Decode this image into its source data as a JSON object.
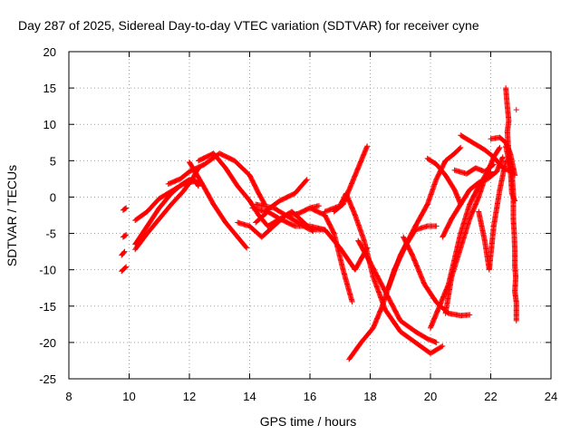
{
  "chart_data": {
    "type": "scatter",
    "title": "Day 287 of 2025, Sidereal Day-to-day VTEC variation (SDTVAR) for receiver cyne",
    "xlabel": "GPS time / hours",
    "ylabel": "SDTVAR / TECUs",
    "xlim": [
      8,
      24
    ],
    "ylim": [
      -25,
      20
    ],
    "xticks": [
      8,
      10,
      12,
      14,
      16,
      18,
      20,
      22,
      24
    ],
    "yticks": [
      -25,
      -20,
      -15,
      -10,
      -5,
      0,
      5,
      10,
      15,
      20
    ],
    "grid": true,
    "marker": "+",
    "color": "#ff0000",
    "series": [
      {
        "name": "s1",
        "points": [
          [
            9.8,
            -1.8
          ],
          [
            9.9,
            -1.5
          ]
        ]
      },
      {
        "name": "s2",
        "points": [
          [
            9.8,
            -5.5
          ],
          [
            9.9,
            -5.2
          ]
        ]
      },
      {
        "name": "s3",
        "points": [
          [
            9.75,
            -8
          ],
          [
            9.85,
            -7.5
          ]
        ]
      },
      {
        "name": "s4",
        "points": [
          [
            9.75,
            -10.2
          ],
          [
            9.9,
            -9.6
          ]
        ]
      },
      {
        "name": "s5",
        "points": [
          [
            10.2,
            -3.2
          ],
          [
            10.6,
            -2
          ],
          [
            11,
            -0.2
          ],
          [
            11.4,
            0.8
          ],
          [
            11.8,
            1.8
          ],
          [
            12.2,
            2.2
          ],
          [
            12.3,
            1.5
          ]
        ]
      },
      {
        "name": "s6",
        "points": [
          [
            10.2,
            -7.2
          ],
          [
            10.6,
            -5
          ],
          [
            11,
            -3
          ],
          [
            11.4,
            -1
          ],
          [
            11.8,
            0.8
          ],
          [
            12.1,
            2.5
          ],
          [
            12.3,
            4
          ]
        ]
      },
      {
        "name": "s7",
        "points": [
          [
            10.2,
            -6.5
          ],
          [
            10.6,
            -4
          ],
          [
            11,
            -1.5
          ],
          [
            11.4,
            0.5
          ],
          [
            11.7,
            1.6
          ],
          [
            12,
            2.4
          ],
          [
            12.3,
            2
          ]
        ]
      },
      {
        "name": "s8",
        "points": [
          [
            11.3,
            1.8
          ],
          [
            11.7,
            2.5
          ],
          [
            12,
            3.5
          ],
          [
            12.5,
            4.5
          ],
          [
            13,
            6
          ],
          [
            13.5,
            5
          ],
          [
            14,
            3
          ],
          [
            14.3,
            0.5
          ],
          [
            14.5,
            -1
          ]
        ]
      },
      {
        "name": "s9",
        "points": [
          [
            12.3,
            5
          ],
          [
            12.8,
            6
          ],
          [
            13.2,
            4
          ],
          [
            13.6,
            1.5
          ],
          [
            14,
            -0.5
          ],
          [
            14.3,
            -2.5
          ],
          [
            14.6,
            -4
          ],
          [
            15,
            -3
          ],
          [
            15.4,
            -2
          ],
          [
            15.8,
            -3.5
          ],
          [
            16.1,
            -4.7
          ]
        ]
      },
      {
        "name": "s10",
        "points": [
          [
            12.0,
            4.8
          ],
          [
            12.4,
            2
          ],
          [
            12.8,
            -1
          ],
          [
            13.2,
            -3.5
          ],
          [
            13.6,
            -5.5
          ],
          [
            13.9,
            -7
          ]
        ]
      },
      {
        "name": "s11",
        "points": [
          [
            13.6,
            -3.5
          ],
          [
            14,
            -4
          ],
          [
            14.4,
            -5.5
          ],
          [
            14.8,
            -4
          ],
          [
            15.2,
            -2.5
          ],
          [
            15.6,
            -2.3
          ],
          [
            16,
            -1.5
          ],
          [
            16.3,
            -1.2
          ]
        ]
      },
      {
        "name": "s12",
        "points": [
          [
            14.1,
            -1.5
          ],
          [
            14.5,
            -2
          ],
          [
            15,
            -0.5
          ],
          [
            15.5,
            0.5
          ],
          [
            15.9,
            2.4
          ]
        ]
      },
      {
        "name": "s13",
        "points": [
          [
            14.2,
            -3.5
          ],
          [
            14.6,
            -2
          ],
          [
            15,
            -3
          ],
          [
            15.5,
            -4
          ],
          [
            16,
            -4
          ],
          [
            16.5,
            -4.5
          ]
        ]
      },
      {
        "name": "s14",
        "points": [
          [
            14.2,
            -1
          ],
          [
            14.8,
            -1.5
          ],
          [
            15.4,
            -3
          ],
          [
            16,
            -4.5
          ],
          [
            16.5,
            -4.5
          ],
          [
            17,
            -7
          ],
          [
            17.5,
            -10
          ],
          [
            17.9,
            -7
          ]
        ]
      },
      {
        "name": "s15",
        "points": [
          [
            16,
            -1.5
          ],
          [
            16.5,
            -2.5
          ],
          [
            16.8,
            -5
          ],
          [
            17.1,
            -10
          ],
          [
            17.4,
            -14.4
          ]
        ]
      },
      {
        "name": "s16",
        "points": [
          [
            16.5,
            -2
          ],
          [
            17,
            -1.2
          ],
          [
            17.2,
            0.5
          ],
          [
            17.5,
            -2.5
          ],
          [
            17.8,
            -6
          ],
          [
            18.1,
            -11
          ],
          [
            18.5,
            -15.5
          ],
          [
            19,
            -18.5
          ],
          [
            19.5,
            -20
          ],
          [
            20,
            -21.5
          ],
          [
            20.4,
            -20.5
          ]
        ]
      },
      {
        "name": "s17",
        "points": [
          [
            16.8,
            -2
          ],
          [
            17.1,
            -1
          ],
          [
            17.4,
            2
          ],
          [
            17.7,
            5
          ],
          [
            17.9,
            7
          ]
        ]
      },
      {
        "name": "s18",
        "points": [
          [
            17.3,
            -22.3
          ],
          [
            17.7,
            -20
          ],
          [
            18.1,
            -18
          ],
          [
            18.4,
            -15
          ],
          [
            18.8,
            -10
          ],
          [
            19.2,
            -6.5
          ],
          [
            19.5,
            -4.5
          ],
          [
            19.9,
            -4
          ],
          [
            20.2,
            -4
          ]
        ]
      },
      {
        "name": "s19",
        "points": [
          [
            17.6,
            -6
          ],
          [
            18,
            -9
          ],
          [
            18.5,
            -13
          ],
          [
            19,
            -17
          ],
          [
            19.5,
            -18.5
          ],
          [
            19.9,
            -19.5
          ],
          [
            20.2,
            -20
          ]
        ]
      },
      {
        "name": "s20",
        "points": [
          [
            18.6,
            -12.5
          ],
          [
            19,
            -8
          ],
          [
            19.5,
            -4
          ],
          [
            19.9,
            -1
          ],
          [
            20.2,
            2.5
          ],
          [
            20.5,
            5
          ],
          [
            20.8,
            6
          ],
          [
            21,
            6.8
          ]
        ]
      },
      {
        "name": "s21",
        "points": [
          [
            19.1,
            -5.5
          ],
          [
            19.4,
            -8
          ],
          [
            19.8,
            -12
          ],
          [
            20.2,
            -14.5
          ],
          [
            20.6,
            -16
          ],
          [
            21,
            -16.3
          ],
          [
            21.3,
            -16.2
          ]
        ]
      },
      {
        "name": "s22",
        "points": [
          [
            19.9,
            5.3
          ],
          [
            20.2,
            4.5
          ],
          [
            20.5,
            3
          ],
          [
            20.8,
            1
          ],
          [
            21,
            -1
          ]
        ]
      },
      {
        "name": "s23",
        "points": [
          [
            20,
            -18
          ],
          [
            20.3,
            -15
          ],
          [
            20.6,
            -12
          ],
          [
            21,
            -5
          ],
          [
            21.3,
            -1
          ],
          [
            21.6,
            1.5
          ],
          [
            21.9,
            3.5
          ],
          [
            22.1,
            5.5
          ],
          [
            22.3,
            6.8
          ]
        ]
      },
      {
        "name": "s24",
        "points": [
          [
            20.4,
            -5.5
          ],
          [
            20.7,
            -3
          ],
          [
            21,
            -1
          ],
          [
            21.3,
            1
          ],
          [
            21.6,
            2
          ],
          [
            21.9,
            2.5
          ],
          [
            22.2,
            3.5
          ],
          [
            22.4,
            5.5
          ]
        ]
      },
      {
        "name": "s25",
        "points": [
          [
            20.5,
            -16
          ],
          [
            20.7,
            -11
          ],
          [
            21,
            -7
          ],
          [
            21.3,
            -3
          ],
          [
            21.6,
            0
          ],
          [
            21.8,
            2.5
          ],
          [
            22,
            3.5
          ]
        ]
      },
      {
        "name": "s26",
        "points": [
          [
            20.8,
            3.7
          ],
          [
            21.2,
            3.2
          ],
          [
            21.5,
            4
          ],
          [
            21.8,
            3.5
          ],
          [
            22.1,
            4.5
          ]
        ]
      },
      {
        "name": "s27",
        "points": [
          [
            21,
            8.5
          ],
          [
            21.4,
            7.5
          ],
          [
            21.8,
            6.5
          ],
          [
            22.1,
            5.5
          ],
          [
            22.4,
            4
          ],
          [
            22.7,
            3.5
          ]
        ]
      },
      {
        "name": "s28",
        "points": [
          [
            21.6,
            -2
          ],
          [
            21.8,
            -6
          ],
          [
            21.95,
            -10
          ],
          [
            22.1,
            -4
          ],
          [
            22.3,
            1
          ],
          [
            22.5,
            5
          ]
        ]
      },
      {
        "name": "s29",
        "points": [
          [
            22,
            8
          ],
          [
            22.3,
            8.2
          ],
          [
            22.5,
            7.5
          ],
          [
            22.65,
            6
          ],
          [
            22.75,
            4
          ],
          [
            22.8,
            3
          ]
        ]
      },
      {
        "name": "s30",
        "points": [
          [
            22.5,
            15
          ],
          [
            22.55,
            12.5
          ],
          [
            22.6,
            10.5
          ],
          [
            22.55,
            9
          ],
          [
            22.6,
            6
          ],
          [
            22.65,
            4
          ],
          [
            22.7,
            0.5
          ],
          [
            22.8,
            -0.5
          ]
        ]
      },
      {
        "name": "s31",
        "points": [
          [
            22.5,
            7
          ],
          [
            22.6,
            5
          ],
          [
            22.7,
            3.5
          ],
          [
            22.75,
            0.5
          ],
          [
            22.75,
            -3
          ],
          [
            22.78,
            -5
          ],
          [
            22.8,
            -7.5
          ],
          [
            22.8,
            -9.5
          ],
          [
            22.83,
            -11
          ],
          [
            22.8,
            -13
          ],
          [
            22.85,
            -14.5
          ],
          [
            22.85,
            -17
          ]
        ]
      },
      {
        "name": "s32",
        "points": [
          [
            22.85,
            12
          ]
        ]
      }
    ]
  }
}
